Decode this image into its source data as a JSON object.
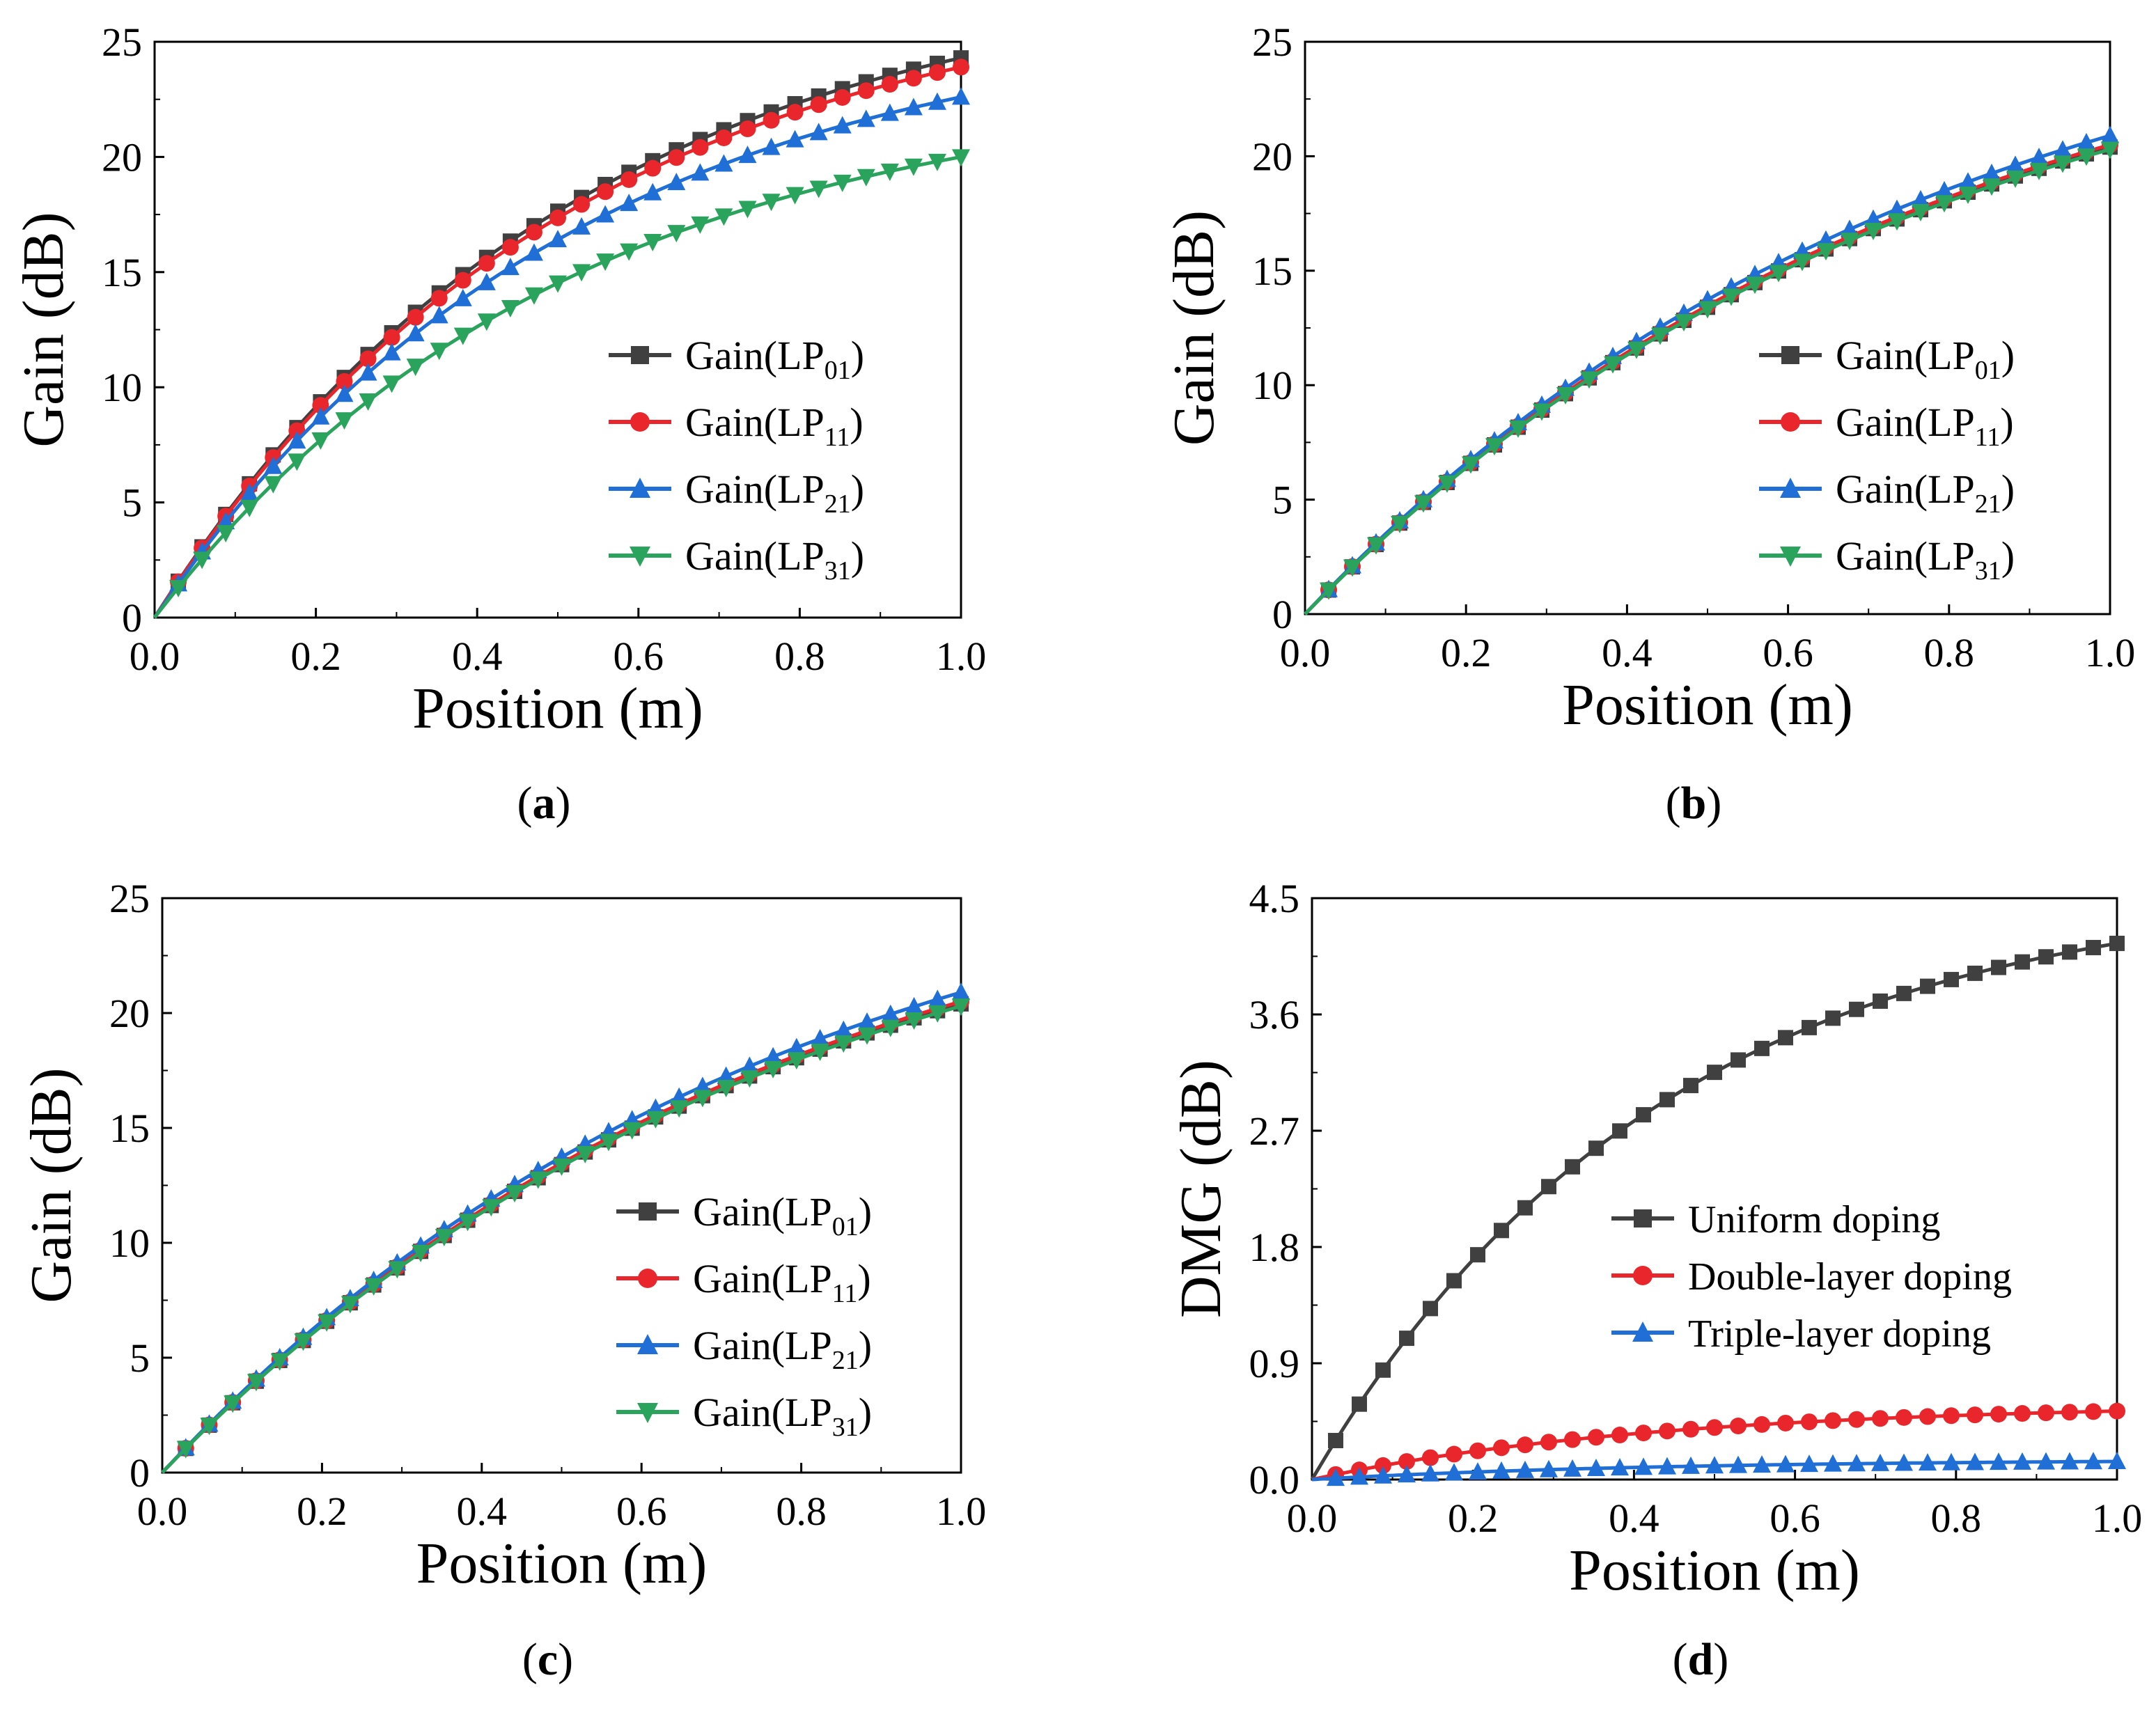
{
  "figure": {
    "panels": [
      "(a)",
      "(b)",
      "(c)",
      "(d)"
    ]
  },
  "marker_shapes": [
    "square",
    "circle",
    "triangle-up",
    "triangle-down"
  ],
  "chart_data": [
    {
      "id": "a",
      "type": "line",
      "caption_letter": "a",
      "xlabel": "Position (m)",
      "ylabel": "Gain  (dB)",
      "xlim": [
        0,
        1.0
      ],
      "ylim": [
        0,
        25
      ],
      "xticks": [
        "0.0",
        "0.2",
        "0.4",
        "0.6",
        "0.8",
        "1.0"
      ],
      "yticks": [
        "0",
        "5",
        "10",
        "15",
        "20",
        "25"
      ],
      "legend_position": "center-right",
      "series": [
        {
          "name": "Gain(LP01)",
          "label_main": "Gain(LP",
          "label_sub": "01",
          "label_end": ")",
          "color": "#404040",
          "marker": "square",
          "gmax": 24.3,
          "k": 1.95
        },
        {
          "name": "Gain(LP11)",
          "label_main": "Gain(LP",
          "label_sub": "11",
          "label_end": ")",
          "color": "#e8262b",
          "marker": "circle",
          "gmax": 23.9,
          "k": 1.95
        },
        {
          "name": "Gain(LP21)",
          "label_main": "Gain(LP",
          "label_sub": "21",
          "label_end": ")",
          "color": "#1f6fd6",
          "marker": "triangle-up",
          "gmax": 22.6,
          "k": 1.95
        },
        {
          "name": "Gain(LP31)",
          "label_main": "Gain(LP",
          "label_sub": "31",
          "label_end": ")",
          "color": "#2aa35c",
          "marker": "triangle-down",
          "gmax": 20.0,
          "k": 1.95
        }
      ]
    },
    {
      "id": "b",
      "type": "line",
      "caption_letter": "b",
      "xlabel": "Position (m)",
      "ylabel": "Gain  (dB)",
      "xlim": [
        0,
        1.0
      ],
      "ylim": [
        0,
        25
      ],
      "xticks": [
        "0.0",
        "0.2",
        "0.4",
        "0.6",
        "0.8",
        "1.0"
      ],
      "yticks": [
        "0",
        "5",
        "10",
        "15",
        "20",
        "25"
      ],
      "legend_position": "center-right",
      "series": [
        {
          "name": "Gain(LP01)",
          "label_main": "Gain(LP",
          "label_sub": "01",
          "label_end": ")",
          "color": "#404040",
          "marker": "square",
          "gmax": 20.4,
          "k": 1.3
        },
        {
          "name": "Gain(LP11)",
          "label_main": "Gain(LP",
          "label_sub": "11",
          "label_end": ")",
          "color": "#e8262b",
          "marker": "circle",
          "gmax": 20.5,
          "k": 1.3
        },
        {
          "name": "Gain(LP21)",
          "label_main": "Gain(LP",
          "label_sub": "21",
          "label_end": ")",
          "color": "#1f6fd6",
          "marker": "triangle-up",
          "gmax": 20.9,
          "k": 1.3
        },
        {
          "name": "Gain(LP31)",
          "label_main": "Gain(LP",
          "label_sub": "31",
          "label_end": ")",
          "color": "#2aa35c",
          "marker": "triangle-down",
          "gmax": 20.3,
          "k": 1.3
        }
      ]
    },
    {
      "id": "c",
      "type": "line",
      "caption_letter": "c",
      "xlabel": "Position (m)",
      "ylabel": "Gain  (dB)",
      "xlim": [
        0,
        1.0
      ],
      "ylim": [
        0,
        25
      ],
      "xticks": [
        "0.0",
        "0.2",
        "0.4",
        "0.6",
        "0.8",
        "1.0"
      ],
      "yticks": [
        "0",
        "5",
        "10",
        "15",
        "20",
        "25"
      ],
      "legend_position": "center-right",
      "series": [
        {
          "name": "Gain(LP01)",
          "label_main": "Gain(LP",
          "label_sub": "01",
          "label_end": ")",
          "color": "#404040",
          "marker": "square",
          "gmax": 20.4,
          "k": 1.3
        },
        {
          "name": "Gain(LP11)",
          "label_main": "Gain(LP",
          "label_sub": "11",
          "label_end": ")",
          "color": "#e8262b",
          "marker": "circle",
          "gmax": 20.5,
          "k": 1.3
        },
        {
          "name": "Gain(LP21)",
          "label_main": "Gain(LP",
          "label_sub": "21",
          "label_end": ")",
          "color": "#1f6fd6",
          "marker": "triangle-up",
          "gmax": 20.9,
          "k": 1.3
        },
        {
          "name": "Gain(LP31)",
          "label_main": "Gain(LP",
          "label_sub": "31",
          "label_end": ")",
          "color": "#2aa35c",
          "marker": "triangle-down",
          "gmax": 20.3,
          "k": 1.3
        }
      ]
    },
    {
      "id": "d",
      "type": "line",
      "caption_letter": "d",
      "xlabel": "Position (m)",
      "ylabel": "DMG  (dB)",
      "xlim": [
        0,
        1.0
      ],
      "ylim": [
        0,
        4.5
      ],
      "xticks": [
        "0.0",
        "0.2",
        "0.4",
        "0.6",
        "0.8",
        "1.0"
      ],
      "yticks": [
        "0.0",
        "0.9",
        "1.8",
        "2.7",
        "3.6",
        "4.5"
      ],
      "legend_position": "center-right",
      "series": [
        {
          "name": "Uniform doping",
          "label_main": "Uniform doping",
          "label_sub": "",
          "label_end": "",
          "color": "#404040",
          "marker": "square",
          "gmax": 4.15,
          "k": 2.3
        },
        {
          "name": "Double-layer doping",
          "label_main": "Double-layer doping",
          "label_sub": "",
          "label_end": "",
          "color": "#e8262b",
          "marker": "circle",
          "gmax": 0.53,
          "k": 2.3
        },
        {
          "name": "Triple-layer doping",
          "label_main": "Triple-layer doping",
          "label_sub": "",
          "label_end": "",
          "color": "#1f6fd6",
          "marker": "triangle-up",
          "gmax": 0.14,
          "k": 2.3
        }
      ]
    }
  ]
}
